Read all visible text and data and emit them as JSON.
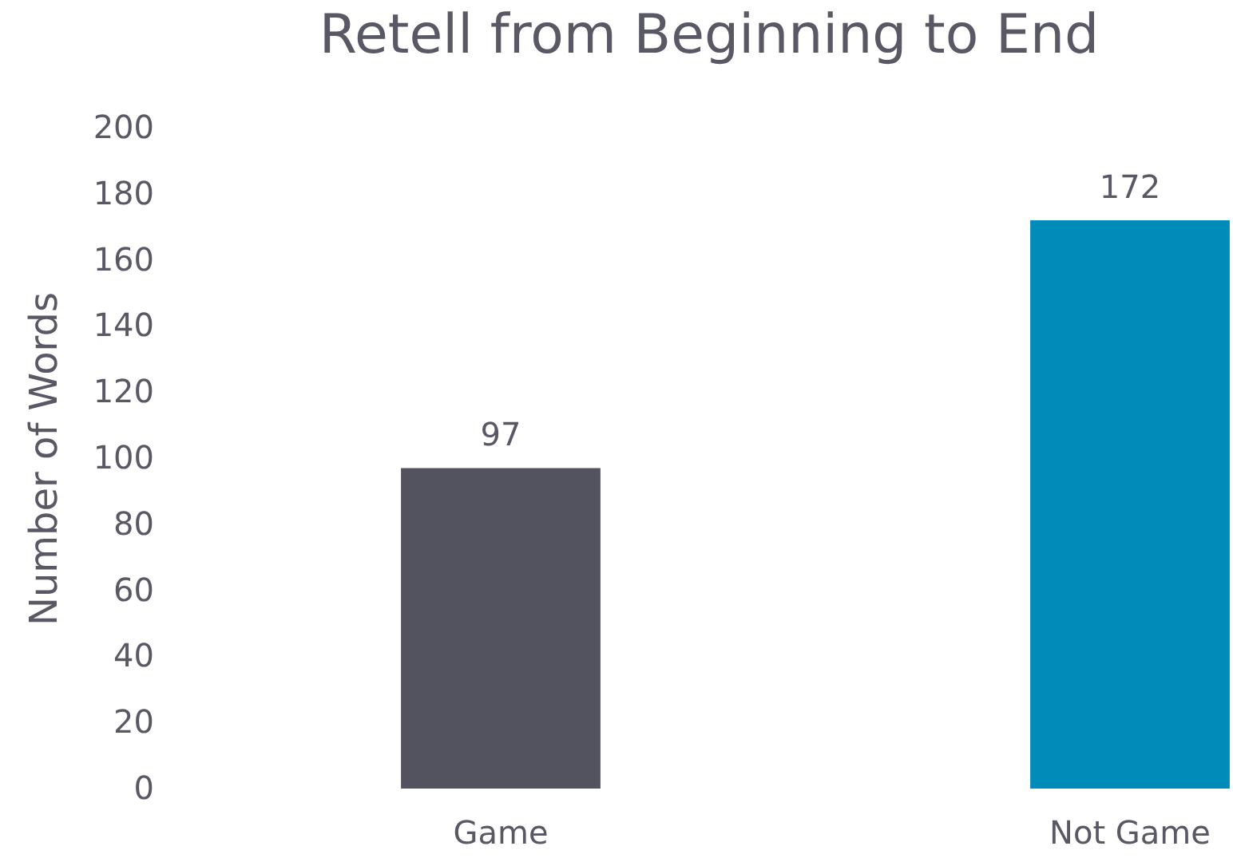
{
  "chart_data": {
    "type": "bar",
    "title": "Retell from Beginning to End",
    "ylabel": "Number of Words",
    "categories": [
      "Game",
      "Not Game"
    ],
    "values": [
      97,
      172
    ],
    "colors": [
      "#53525f",
      "#008bb9"
    ],
    "ylim": [
      0,
      200
    ],
    "yticks": [
      0,
      20,
      40,
      60,
      80,
      100,
      120,
      140,
      160,
      180,
      200
    ],
    "grid": false,
    "data_labels": true
  }
}
